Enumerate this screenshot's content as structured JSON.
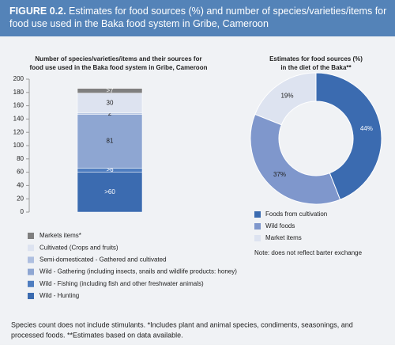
{
  "header": {
    "label": "FIGURE 0.2.",
    "title": "Estimates for food sources (%) and number of species/varieties/items for food use used in the Baka food system in Gribe, Cameroon"
  },
  "chart_data": [
    {
      "type": "stacked-bar",
      "title": [
        "Number of species/varieties/items and their sources for",
        "food use used in the Baka food system in Gribe, Cameroon"
      ],
      "categories": [
        null
      ],
      "ylim": [
        0,
        200
      ],
      "yticks": [
        0,
        20,
        40,
        60,
        80,
        100,
        120,
        140,
        160,
        180,
        200
      ],
      "series": [
        {
          "name": "Wild - Hunting",
          "color": "#3b6bb0",
          "values": [
            60
          ],
          "value_labels": [
            ">60"
          ]
        },
        {
          "name": "Wild - Fishing (including fish and other freshwater animals)",
          "color": "#4e7dc0",
          "values": [
            6
          ],
          "value_labels": [
            ">6"
          ]
        },
        {
          "name": "Wild - Gathering (including insects, snails and wildlife products: honey)",
          "color": "#8ea6d2",
          "values": [
            81
          ]
        },
        {
          "name": "Semi-domesticated - Gathered and cultivated",
          "color": "#aebfe0",
          "values": [
            2
          ]
        },
        {
          "name": "Cultivated (Crops and fruits)",
          "color": "#dde3f0",
          "values": [
            30
          ]
        },
        {
          "name": "Markets items*",
          "color": "#7f7f7f",
          "values": [
            7
          ],
          "value_labels": [
            ">7"
          ]
        }
      ]
    },
    {
      "type": "donut",
      "title": [
        "Estimates for food sources (%)",
        "in the diet of the Baka**"
      ],
      "categories": [
        "Foods from cultivation",
        "Wild foods",
        "Market items"
      ],
      "values": [
        44,
        37,
        19
      ],
      "value_labels": [
        "44%",
        "37%",
        "19%"
      ],
      "colors": [
        "#3b6bb0",
        "#7f97cc",
        "#dde3f0"
      ],
      "note": "Note: does not reflect barter exchange"
    }
  ],
  "footnote": [
    "Species count does not include stimulants. *Includes plant and animal species, condiments, seasonings, and",
    "processed foods. **Estimates based on data available."
  ]
}
